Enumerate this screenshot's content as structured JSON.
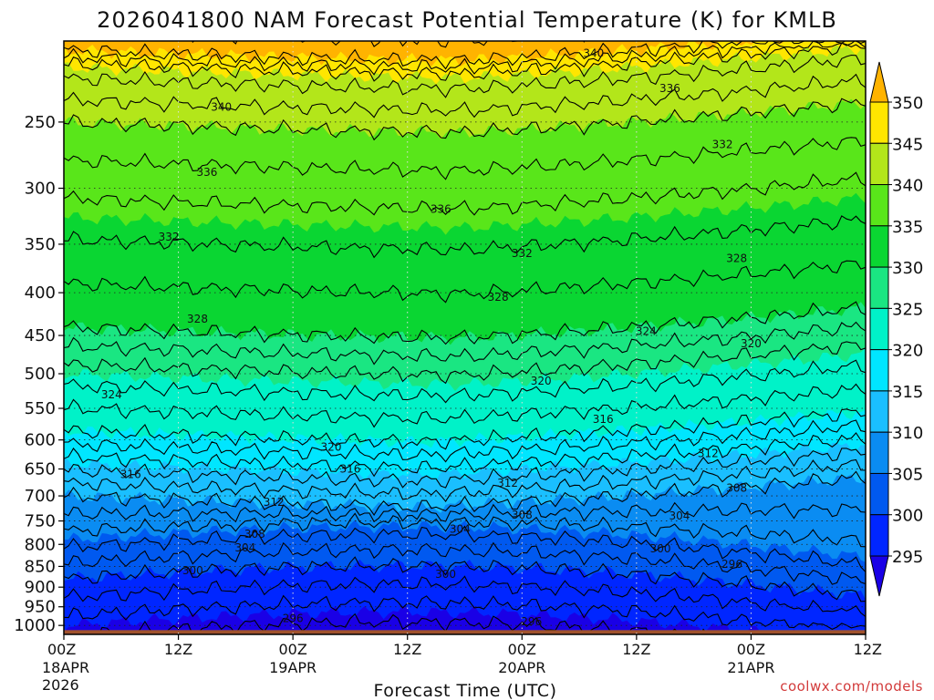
{
  "chart_data": {
    "type": "heatmap",
    "title": "2026041800 NAM Forecast Potential Temperature (K) for KMLB",
    "xlabel": "Forecast Time (UTC)",
    "ylabel": "",
    "credit": "coolwx.com/models",
    "y_scale": "log",
    "y_inverted": true,
    "ylim_hPa": [
      1025,
      200
    ],
    "xlim_hours": [
      0,
      84
    ],
    "grid": true,
    "y_ticks": [
      250,
      300,
      350,
      400,
      450,
      500,
      550,
      600,
      650,
      700,
      750,
      800,
      850,
      900,
      950,
      1000
    ],
    "x_ticks": [
      {
        "hour": 0,
        "label": "00Z",
        "sub1": "18APR",
        "sub2": "2026"
      },
      {
        "hour": 12,
        "label": "12Z",
        "sub1": "",
        "sub2": ""
      },
      {
        "hour": 24,
        "label": "00Z",
        "sub1": "19APR",
        "sub2": ""
      },
      {
        "hour": 36,
        "label": "12Z",
        "sub1": "",
        "sub2": ""
      },
      {
        "hour": 48,
        "label": "00Z",
        "sub1": "20APR",
        "sub2": ""
      },
      {
        "hour": 60,
        "label": "12Z",
        "sub1": "",
        "sub2": ""
      },
      {
        "hour": 72,
        "label": "00Z",
        "sub1": "21APR",
        "sub2": ""
      },
      {
        "hour": 84,
        "label": "12Z",
        "sub1": "",
        "sub2": ""
      }
    ],
    "colorbar": {
      "levels": [
        295,
        300,
        305,
        310,
        315,
        320,
        325,
        330,
        335,
        340,
        345,
        350
      ],
      "colors": [
        "#1a00e6",
        "#0026ff",
        "#0059f0",
        "#0a8cf2",
        "#1abfff",
        "#00e6ff",
        "#00f2c8",
        "#1ae682",
        "#0ad632",
        "#59e61a",
        "#b3e61a",
        "#ffe600",
        "#ffb300"
      ]
    },
    "surface_color": "#a0522d",
    "contour_labels": [
      {
        "text": "340",
        "hour": 16.5,
        "p": 240
      },
      {
        "text": "340",
        "hour": 55.5,
        "p": 207
      },
      {
        "text": "336",
        "hour": 63.5,
        "p": 228
      },
      {
        "text": "336",
        "hour": 15.0,
        "p": 287
      },
      {
        "text": "336",
        "hour": 39.5,
        "p": 318
      },
      {
        "text": "332",
        "hour": 69.0,
        "p": 266
      },
      {
        "text": "332",
        "hour": 11.0,
        "p": 343
      },
      {
        "text": "332",
        "hour": 48.0,
        "p": 359
      },
      {
        "text": "328",
        "hour": 70.5,
        "p": 364
      },
      {
        "text": "328",
        "hour": 45.5,
        "p": 405
      },
      {
        "text": "328",
        "hour": 14.0,
        "p": 430
      },
      {
        "text": "324",
        "hour": 61.0,
        "p": 445
      },
      {
        "text": "324",
        "hour": 5.0,
        "p": 530
      },
      {
        "text": "320",
        "hour": 72.0,
        "p": 460
      },
      {
        "text": "320",
        "hour": 50.0,
        "p": 510
      },
      {
        "text": "320",
        "hour": 28.0,
        "p": 612
      },
      {
        "text": "316",
        "hour": 56.5,
        "p": 567
      },
      {
        "text": "316",
        "hour": 30.0,
        "p": 650
      },
      {
        "text": "316",
        "hour": 7.0,
        "p": 660
      },
      {
        "text": "312",
        "hour": 67.5,
        "p": 623
      },
      {
        "text": "312",
        "hour": 46.5,
        "p": 676
      },
      {
        "text": "312",
        "hour": 22.0,
        "p": 712
      },
      {
        "text": "308",
        "hour": 70.5,
        "p": 685
      },
      {
        "text": "308",
        "hour": 48.0,
        "p": 738
      },
      {
        "text": "308",
        "hour": 20.0,
        "p": 778
      },
      {
        "text": "304",
        "hour": 64.5,
        "p": 740
      },
      {
        "text": "304",
        "hour": 41.5,
        "p": 767
      },
      {
        "text": "304",
        "hour": 19.0,
        "p": 808
      },
      {
        "text": "300",
        "hour": 62.5,
        "p": 810
      },
      {
        "text": "300",
        "hour": 13.5,
        "p": 860
      },
      {
        "text": "300",
        "hour": 40.0,
        "p": 868
      },
      {
        "text": "296",
        "hour": 70.0,
        "p": 845
      },
      {
        "text": "296",
        "hour": 24.0,
        "p": 981
      },
      {
        "text": "296",
        "hour": 49.0,
        "p": 990
      }
    ]
  }
}
